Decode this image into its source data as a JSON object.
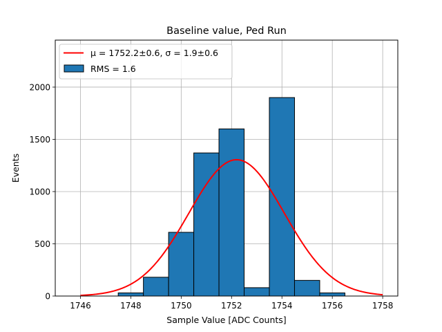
{
  "chart_data": {
    "type": "bar",
    "subtype": "histogram-with-gaussian-fit",
    "title": "Baseline value, Ped Run",
    "xlabel": "Sample Value [ADC Counts]",
    "ylabel": "Events",
    "xlim": [
      1745,
      1758.6
    ],
    "ylim": [
      0,
      2450
    ],
    "xticks": [
      1746,
      1748,
      1750,
      1752,
      1754,
      1756,
      1758
    ],
    "yticks": [
      0,
      500,
      1000,
      1500,
      2000
    ],
    "grid": true,
    "legend_position": "top-left",
    "histogram": {
      "name": "RMS = 1.6",
      "color": "#1f77b4",
      "edgecolor": "#000000",
      "bin_edges": [
        1745.5,
        1746.5,
        1747.5,
        1748.5,
        1749.5,
        1750.5,
        1751.5,
        1752.5,
        1753.5,
        1754.5,
        1755.5,
        1756.5,
        1757.5
      ],
      "counts": [
        0,
        0,
        30,
        180,
        610,
        1370,
        1600,
        80,
        1900,
        150,
        30,
        0
      ]
    },
    "fit": {
      "name": "μ = 1752.2±0.6, σ = 1.9±0.6",
      "type": "gaussian",
      "color": "#ff0000",
      "mu": 1752.2,
      "sigma": 1.9,
      "amplitude": 1305,
      "x_range": [
        1746,
        1758
      ]
    }
  }
}
